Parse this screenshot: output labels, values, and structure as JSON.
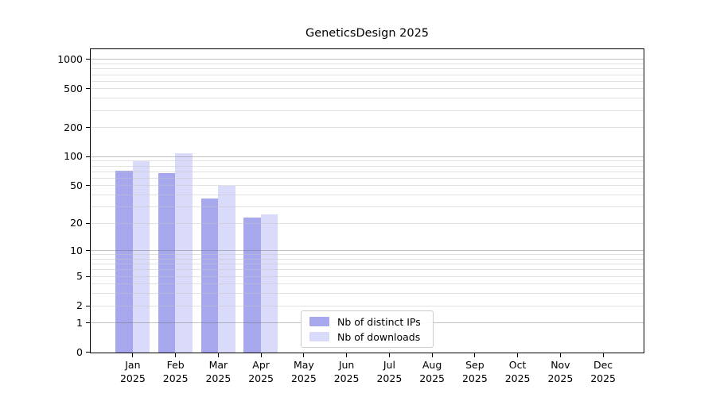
{
  "title": "GeneticsDesign 2025",
  "chart_data": {
    "type": "bar",
    "title": "GeneticsDesign 2025",
    "categories": [
      "Jan 2025",
      "Feb 2025",
      "Mar 2025",
      "Apr 2025",
      "May 2025",
      "Jun 2025",
      "Jul 2025",
      "Aug 2025",
      "Sep 2025",
      "Oct 2025",
      "Nov 2025",
      "Dec 2025"
    ],
    "series": [
      {
        "name": "Nb of distinct IPs",
        "color": "#a7a7ee",
        "values": [
          72,
          68,
          37,
          23,
          0,
          0,
          0,
          0,
          0,
          0,
          0,
          0
        ]
      },
      {
        "name": "Nb of downloads",
        "color": "#dadbfa",
        "values": [
          91,
          110,
          50,
          25,
          0,
          0,
          0,
          0,
          0,
          0,
          0,
          0
        ]
      }
    ],
    "xlabel": "",
    "ylabel": "",
    "yscale": "log1p",
    "ylim": [
      0,
      1070
    ],
    "yticks": [
      0,
      1,
      2,
      5,
      10,
      20,
      50,
      100,
      200,
      500,
      1000
    ],
    "emphasized_gridlines": [
      1,
      10,
      100,
      1000
    ],
    "minor_gridlines": [
      3,
      4,
      6,
      7,
      8,
      9,
      30,
      40,
      60,
      70,
      80,
      90,
      300,
      400,
      600,
      700,
      800,
      900
    ],
    "grid": true,
    "legend_position": "inside-bottom-center"
  },
  "legend": {
    "items": [
      {
        "label": "Nb of distinct IPs",
        "color": "#a7a7ee"
      },
      {
        "label": "Nb of downloads",
        "color": "#dadbfa"
      }
    ]
  }
}
